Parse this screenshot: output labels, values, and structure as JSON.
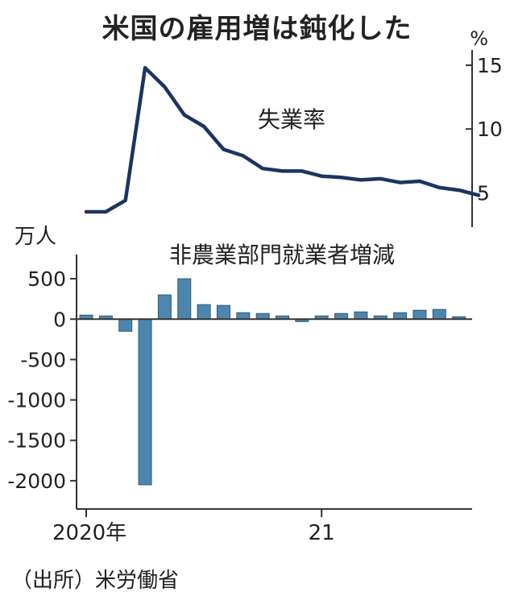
{
  "title": "米国の雇用増は鈍化した",
  "source": "（出所）米労働省",
  "colors": {
    "line": "#1b3461",
    "bar": "#4d86ad",
    "bar_edge": "#2c5a7c",
    "axis": "#333333"
  },
  "chart_data": [
    {
      "type": "line",
      "label": "失業率",
      "unit": "%",
      "x": [
        "2020-01",
        "2020-02",
        "2020-03",
        "2020-04",
        "2020-05",
        "2020-06",
        "2020-07",
        "2020-08",
        "2020-09",
        "2020-10",
        "2020-11",
        "2020-12",
        "2021-01",
        "2021-02",
        "2021-03",
        "2021-04",
        "2021-05",
        "2021-06",
        "2021-07",
        "2021-08",
        "2021-09"
      ],
      "values": [
        3.5,
        3.5,
        4.4,
        14.8,
        13.3,
        11.1,
        10.2,
        8.4,
        7.9,
        6.9,
        6.7,
        6.7,
        6.3,
        6.2,
        6.0,
        6.1,
        5.8,
        5.9,
        5.4,
        5.2,
        4.8
      ],
      "yticks": [
        5,
        10,
        15
      ],
      "ylim": [
        2.3,
        16.2
      ]
    },
    {
      "type": "bar",
      "label": "非農業部門就業者増減",
      "unit": "万人",
      "x": [
        "2020-01",
        "2020-02",
        "2020-03",
        "2020-04",
        "2020-05",
        "2020-06",
        "2020-07",
        "2020-08",
        "2020-09",
        "2020-10",
        "2020-11",
        "2020-12",
        "2021-01",
        "2021-02",
        "2021-03",
        "2021-04",
        "2021-05",
        "2021-06",
        "2021-07",
        "2021-08",
        "2021-09"
      ],
      "values": [
        50,
        40,
        -150,
        -2050,
        300,
        500,
        180,
        170,
        80,
        70,
        40,
        -30,
        40,
        70,
        90,
        40,
        80,
        110,
        120,
        30,
        0
      ],
      "yticks": [
        500,
        0,
        -500,
        -1000,
        -1500,
        -2000
      ],
      "ytick_labels": [
        "500",
        "0",
        "-500",
        "-1000",
        "-1500",
        "-2000"
      ],
      "ylim": [
        -2350,
        800
      ],
      "xtick_labels": [
        "2020年",
        "21"
      ]
    }
  ]
}
